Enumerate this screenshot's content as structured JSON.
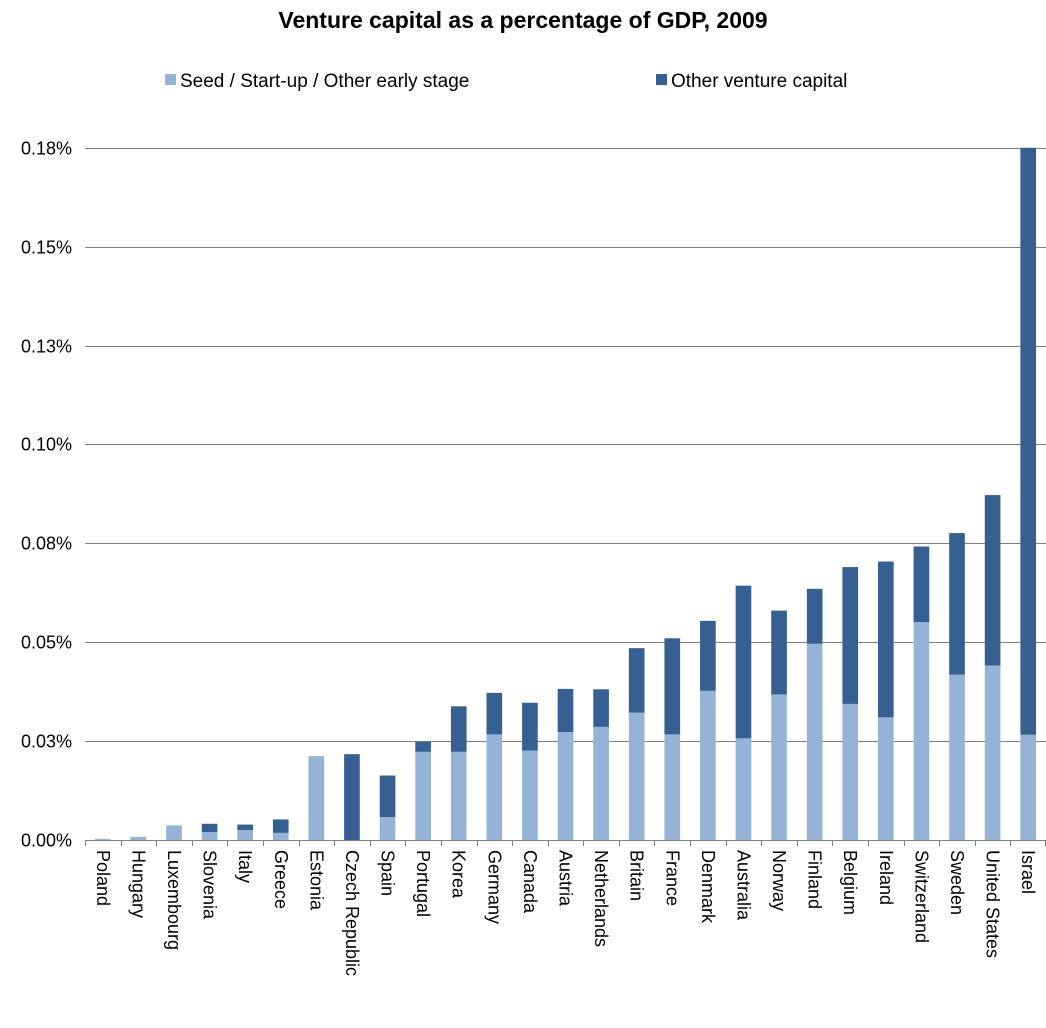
{
  "chart_data": {
    "type": "bar",
    "stacked": true,
    "title": "Venture capital as a percentage of GDP, 2009",
    "xlabel": "",
    "ylabel": "",
    "ylim": [
      0,
      0.18
    ],
    "y_ticks": [
      0,
      0.025,
      0.05,
      0.075,
      0.1,
      0.125,
      0.15,
      0.175
    ],
    "y_tick_labels": [
      "0.00%",
      "0.03%",
      "0.05%",
      "0.08%",
      "0.10%",
      "0.13%",
      "0.15%",
      "0.18%"
    ],
    "legend_position": "top",
    "grid": true,
    "categories": [
      "Poland",
      "Hungary",
      "Luxembourg",
      "Slovenia",
      "Italy",
      "Greece",
      "Estonia",
      "Czech Republic",
      "Spain",
      "Portugal",
      "Korea",
      "Germany",
      "Canada",
      "Austria",
      "Netherlands",
      "Britain",
      "France",
      "Denmark",
      "Australia",
      "Norway",
      "Finland",
      "Belgium",
      "Ireland",
      "Switzerland",
      "Sweden",
      "United States",
      "Israel"
    ],
    "series": [
      {
        "name": "Seed / Start-up / Other early stage",
        "color": "#95b3d7",
        "values": [
          0.0003,
          0.0008,
          0.0037,
          0.002,
          0.0025,
          0.0018,
          0.0212,
          0.0,
          0.0058,
          0.0223,
          0.0223,
          0.0267,
          0.0226,
          0.0273,
          0.0286,
          0.0322,
          0.0267,
          0.0377,
          0.0257,
          0.0368,
          0.0496,
          0.0344,
          0.031,
          0.0551,
          0.0418,
          0.0441,
          0.0266
        ]
      },
      {
        "name": "Other venture capital",
        "color": "#376092",
        "values": [
          0.0,
          0.0,
          0.0,
          0.0021,
          0.0014,
          0.0034,
          0.0,
          0.0217,
          0.0105,
          0.0025,
          0.0115,
          0.0105,
          0.0121,
          0.0109,
          0.0095,
          0.0163,
          0.0243,
          0.0177,
          0.0386,
          0.0212,
          0.0139,
          0.0346,
          0.0394,
          0.0191,
          0.0358,
          0.0431,
          0.1484
        ]
      }
    ]
  }
}
